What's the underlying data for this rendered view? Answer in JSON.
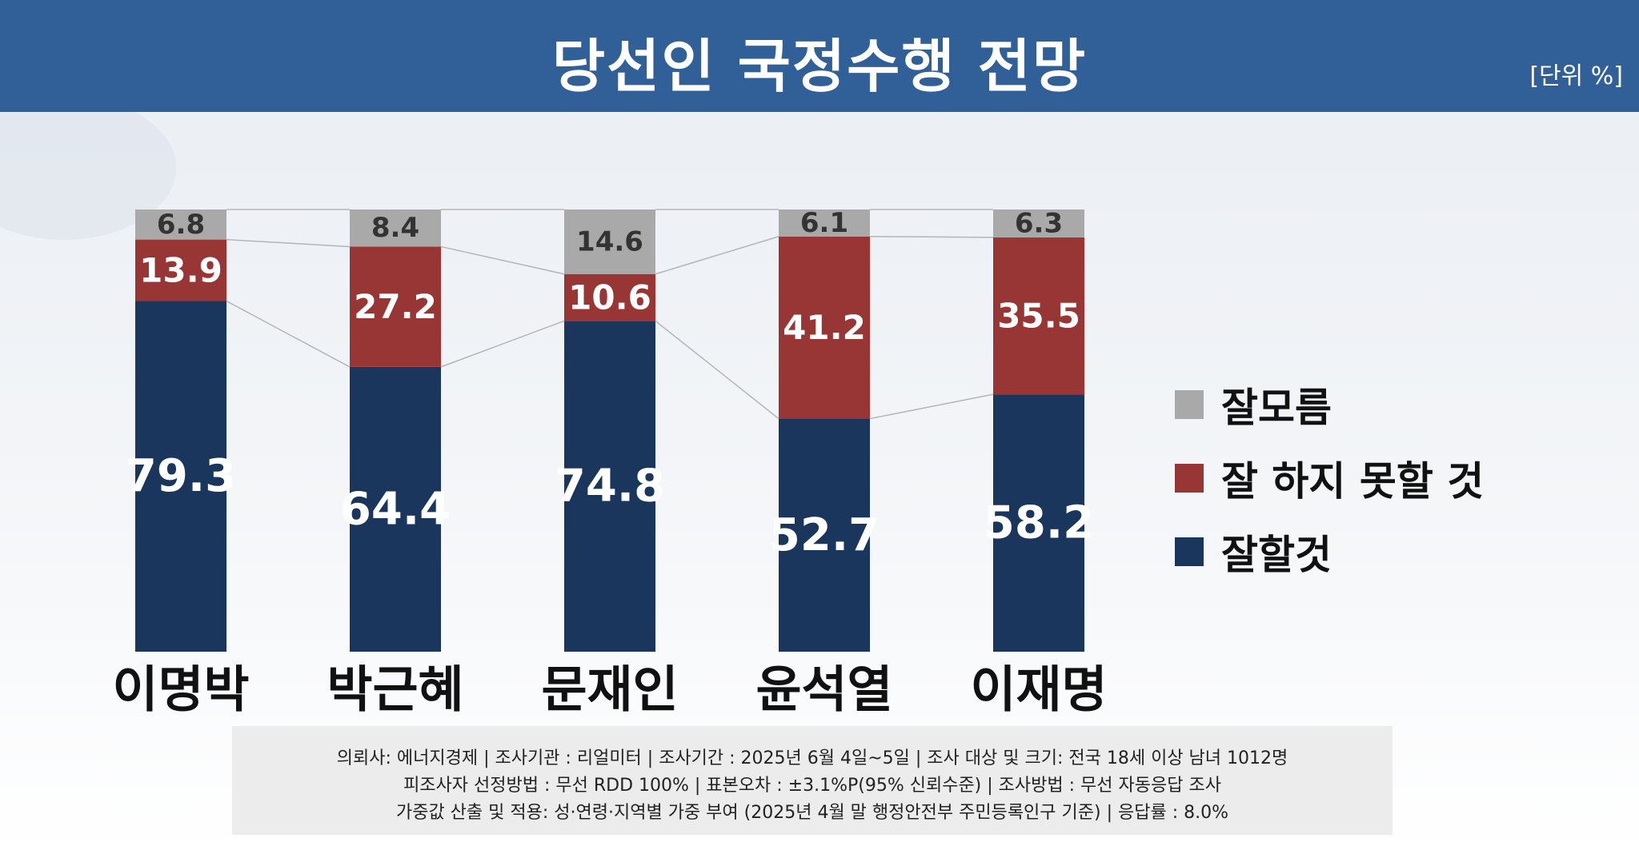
{
  "header": {
    "title": "당선인 국정수행 전망",
    "unit": "[단위 %]"
  },
  "colors": {
    "header_bg": "#315f97",
    "good": "#1b365d",
    "bad": "#983535",
    "unknown": "#a9a9a9"
  },
  "chart_data": {
    "type": "bar",
    "stacked": true,
    "percent": true,
    "title": "당선인 국정수행 전망",
    "categories": [
      "이명박",
      "박근혜",
      "문재인",
      "윤석열",
      "이재명"
    ],
    "series": [
      {
        "name": "잘할것",
        "color": "#1b365d",
        "values": [
          79.3,
          64.4,
          74.8,
          52.7,
          58.2
        ]
      },
      {
        "name": "잘 하지 못할 것",
        "color": "#983535",
        "values": [
          13.9,
          27.2,
          10.6,
          41.2,
          35.5
        ]
      },
      {
        "name": "잘모름",
        "color": "#a9a9a9",
        "values": [
          6.8,
          8.4,
          14.6,
          6.1,
          6.3
        ]
      }
    ],
    "legend_order": [
      "잘모름",
      "잘 하지 못할 것",
      "잘할것"
    ],
    "legend_position": "right",
    "ylim": [
      0,
      100
    ],
    "grid": false
  },
  "footnote": {
    "lines": [
      "의뢰사: 에너지경제 | 조사기관 : 리얼미터  |  조사기간 : 2025년 6월 4일~5일 | 조사 대상 및 크기: 전국 18세 이상 남녀 1012명",
      "피조사자 선정방법 : 무선 RDD 100% | 표본오차 : ±3.1%P(95% 신뢰수준) | 조사방법 : 무선 자동응답 조사",
      "가중값 산출 및 적용: 성·연령·지역별 가중 부여 (2025년 4월 말 행정안전부 주민등록인구 기준) | 응답률 : 8.0%"
    ]
  }
}
